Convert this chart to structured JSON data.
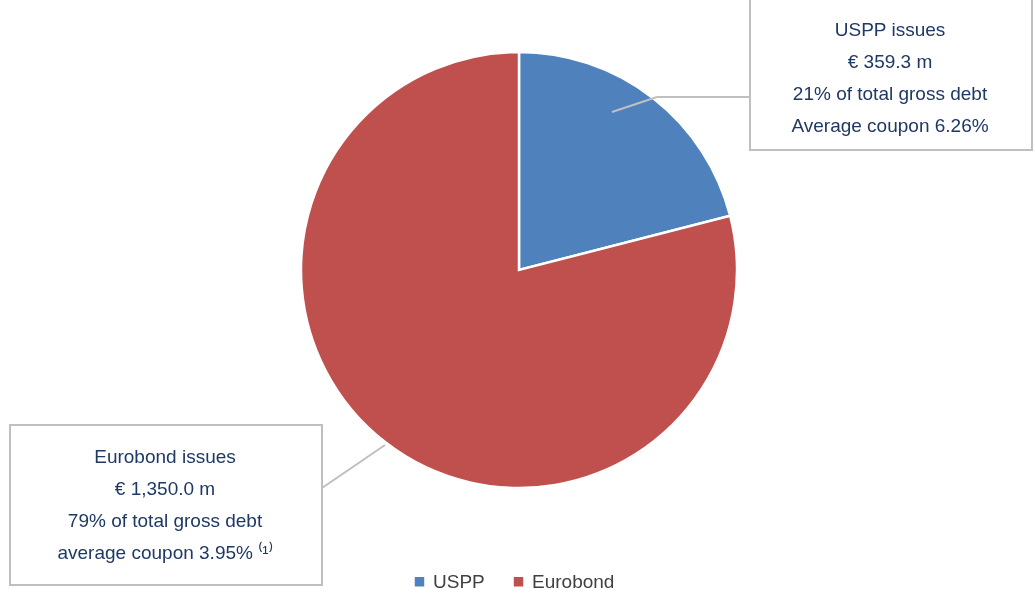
{
  "chart_data": {
    "type": "pie",
    "categories": [
      "USPP",
      "Eurobond"
    ],
    "values": [
      21,
      79
    ],
    "colors": [
      "#4f81bd",
      "#c0504d"
    ],
    "legend": "bottom",
    "annotations": [
      "USPP issues\n€ 359.3 m\n21% of total gross debt\nAverage coupon 6.26%",
      "Eurobond issues\n€ 1,350.0  m\n79% of total gross debt\naverage coupon 3.95% ⁽¹⁾"
    ]
  }
}
